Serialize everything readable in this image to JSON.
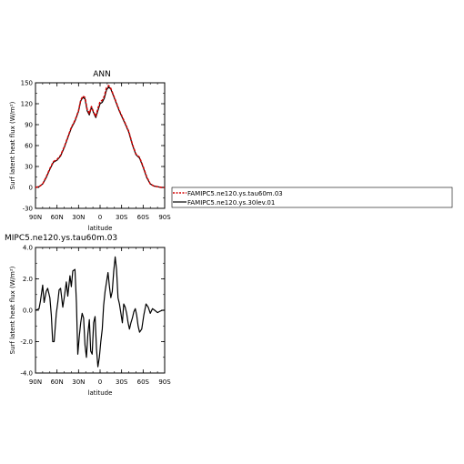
{
  "chart_data": [
    {
      "type": "line",
      "title": "ANN",
      "xlabel": "latitude",
      "ylabel": "Surf latent heat flux (W/m²)",
      "xticks": [
        "90N",
        "60N",
        "30N",
        "0",
        "30S",
        "60S",
        "90S"
      ],
      "yticks": [
        "-30",
        "0",
        "30",
        "60",
        "90",
        "120",
        "150"
      ],
      "xlim": [
        90,
        -90
      ],
      "ylim": [
        -30,
        150
      ],
      "legend_position": "right",
      "series": [
        {
          "name": "FAMIPC5.ne120.ys.tau60m.03",
          "color": "#d40000",
          "style": "dashed",
          "x": [
            90,
            85,
            80,
            75,
            70,
            65,
            60,
            55,
            50,
            45,
            40,
            35,
            30,
            27,
            24,
            21,
            18,
            15,
            12,
            9,
            6,
            3,
            0,
            -3,
            -6,
            -9,
            -12,
            -15,
            -18,
            -21,
            -24,
            -27,
            -30,
            -35,
            -40,
            -45,
            -50,
            -55,
            -60,
            -65,
            -70,
            -75,
            -80,
            -85,
            -90
          ],
          "y": [
            0,
            1,
            5,
            15,
            27,
            37,
            40,
            46,
            58,
            72,
            86,
            96,
            110,
            125,
            131,
            129,
            112,
            106,
            116,
            108,
            102,
            113,
            123,
            125,
            131,
            143,
            146,
            142,
            134,
            126,
            118,
            110,
            103,
            92,
            80,
            62,
            48,
            43,
            30,
            15,
            5,
            2,
            1,
            0,
            0
          ]
        },
        {
          "name": "FAMIPC5.ne120.ys.30lev.01",
          "color": "#000000",
          "style": "solid",
          "x": [
            90,
            85,
            80,
            75,
            70,
            65,
            60,
            55,
            50,
            45,
            40,
            35,
            30,
            27,
            24,
            21,
            18,
            15,
            12,
            9,
            6,
            3,
            0,
            -3,
            -6,
            -9,
            -12,
            -15,
            -18,
            -21,
            -24,
            -27,
            -30,
            -35,
            -40,
            -45,
            -50,
            -55,
            -60,
            -65,
            -70,
            -75,
            -80,
            -85,
            -90
          ],
          "y": [
            0,
            1,
            5,
            14,
            26,
            36,
            39,
            45,
            57,
            71,
            85,
            95,
            109,
            124,
            129,
            127,
            110,
            104,
            115,
            107,
            100,
            110,
            120,
            122,
            128,
            140,
            144,
            141,
            133,
            125,
            117,
            109,
            102,
            91,
            79,
            61,
            47,
            42,
            29,
            14,
            5,
            2,
            1,
            0,
            0
          ]
        }
      ]
    },
    {
      "type": "line",
      "title": "MIPC5.ne120.ys.tau60m.03",
      "xlabel": "latitude",
      "ylabel": "Surf latent heat flux (W/m²)",
      "xticks": [
        "90N",
        "60N",
        "30N",
        "0",
        "30S",
        "60S",
        "90S"
      ],
      "yticks": [
        "-4.0",
        "-2.0",
        "0.0",
        "2.0",
        "4.0"
      ],
      "xlim": [
        90,
        -90
      ],
      "ylim": [
        -4,
        4
      ],
      "series": [
        {
          "name": "",
          "color": "#000000",
          "style": "solid",
          "x": [
            90,
            87,
            85,
            83,
            80,
            78,
            75,
            73,
            70,
            68,
            66,
            64,
            61,
            59,
            57,
            55,
            52,
            50,
            47,
            45,
            42,
            40,
            38,
            35,
            33,
            31,
            29,
            27,
            25,
            23,
            21,
            19,
            17,
            15,
            13,
            11,
            9,
            7,
            5,
            3,
            1,
            -1,
            -3,
            -5,
            -7,
            -9,
            -11,
            -13,
            -15,
            -17,
            -19,
            -21,
            -23,
            -25,
            -27,
            -29,
            -31,
            -33,
            -35,
            -37,
            -39,
            -41,
            -43,
            -45,
            -47,
            -49,
            -51,
            -53,
            -55,
            -58,
            -61,
            -64,
            -67,
            -70,
            -73,
            -76,
            -80,
            -84,
            -87,
            -90
          ],
          "y": [
            0,
            0.05,
            0.1,
            0.6,
            1.6,
            0.5,
            1.2,
            1.4,
            0.8,
            -0.3,
            -2,
            -2,
            -0.2,
            0.5,
            1.3,
            1.4,
            0.2,
            0.8,
            1.8,
            0.9,
            2.2,
            1.5,
            2.5,
            2.6,
            0.5,
            -2.8,
            -1.7,
            -0.8,
            -0.2,
            -0.5,
            -2.2,
            -3.0,
            -1.5,
            -0.6,
            -2.6,
            -2.8,
            -0.8,
            -0.4,
            -2.5,
            -3.6,
            -3.0,
            -2.0,
            -1.2,
            0.3,
            1.2,
            1.8,
            2.4,
            1.5,
            0.8,
            1.2,
            2.5,
            3.4,
            2.6,
            0.8,
            0.4,
            -0.2,
            -0.8,
            0.4,
            0.2,
            -0.2,
            -0.8,
            -1.2,
            -0.8,
            -0.5,
            -0.1,
            0.1,
            -0.3,
            -1.0,
            -1.4,
            -1.2,
            -0.3,
            0.4,
            0.2,
            -0.2,
            0.1,
            0,
            -0.15,
            -0.05,
            0,
            0
          ]
        }
      ]
    }
  ]
}
